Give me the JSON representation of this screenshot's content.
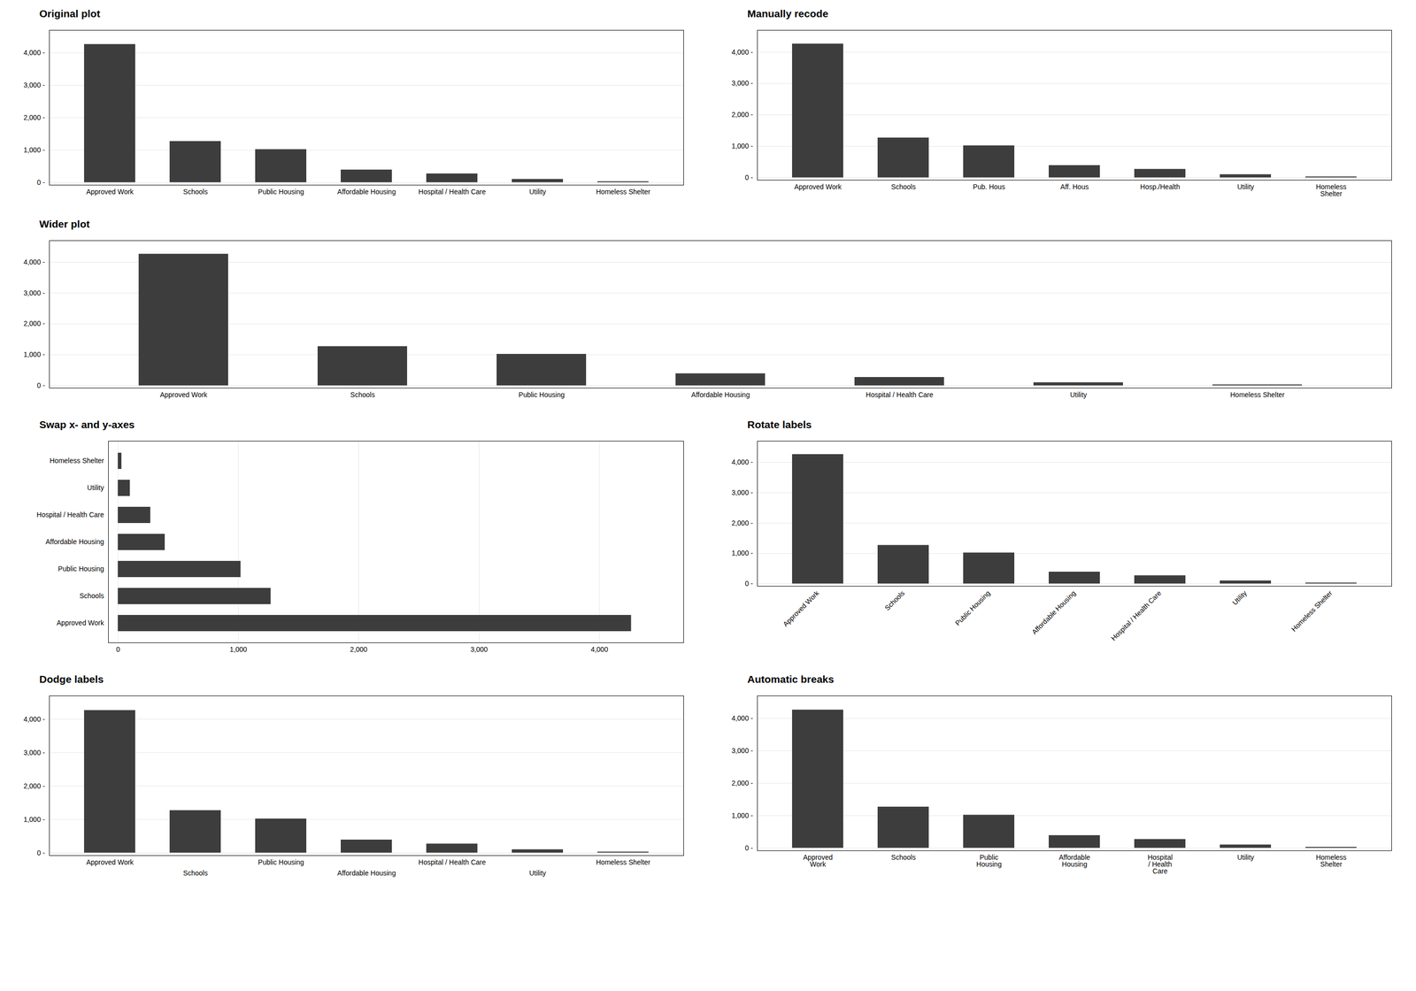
{
  "chart_data": [
    {
      "type": "bar",
      "title": "Original plot",
      "categories": [
        "Approved Work",
        "Schools",
        "Public Housing",
        "Affordable Housing",
        "Hospital / Health Care",
        "Utility",
        "Homeless Shelter"
      ],
      "values": [
        4265,
        1270,
        1020,
        390,
        270,
        100,
        30
      ],
      "color": "#3d3d3d",
      "ylim": [
        -80,
        4700
      ],
      "yticks": [
        {
          "value": 0,
          "label": "0 -"
        },
        {
          "value": 1000,
          "label": "1,000 -"
        },
        {
          "value": 2000,
          "label": "2,000 -"
        },
        {
          "value": 3000,
          "label": "3,000 -"
        },
        {
          "value": 4000,
          "label": "4,000 -"
        }
      ],
      "grid": true
    },
    {
      "type": "bar",
      "title": "Manually recode",
      "categories": [
        "Approved Work",
        "Schools",
        "Pub. Hous",
        "Aff. Hous",
        "Hosp./Health",
        "Utility",
        "Homeless\nShelter"
      ],
      "values": [
        4265,
        1270,
        1020,
        390,
        270,
        100,
        30
      ],
      "color": "#3d3d3d",
      "ylim": [
        -80,
        4700
      ],
      "yticks": [
        {
          "value": 0,
          "label": "0 -"
        },
        {
          "value": 1000,
          "label": "1,000 -"
        },
        {
          "value": 2000,
          "label": "2,000 -"
        },
        {
          "value": 3000,
          "label": "3,000 -"
        },
        {
          "value": 4000,
          "label": "4,000 -"
        }
      ],
      "grid": true
    },
    {
      "type": "bar",
      "title": "Wider plot",
      "categories": [
        "Approved Work",
        "Schools",
        "Public Housing",
        "Affordable Housing",
        "Hospital / Health Care",
        "Utility",
        "Homeless Shelter"
      ],
      "values": [
        4265,
        1270,
        1020,
        390,
        270,
        100,
        30
      ],
      "color": "#3d3d3d",
      "ylim": [
        -80,
        4700
      ],
      "yticks": [
        {
          "value": 0,
          "label": "0 -"
        },
        {
          "value": 1000,
          "label": "1,000 -"
        },
        {
          "value": 2000,
          "label": "2,000 -"
        },
        {
          "value": 3000,
          "label": "3,000 -"
        },
        {
          "value": 4000,
          "label": "4,000 -"
        }
      ],
      "grid": true
    },
    {
      "type": "bar",
      "title": "Swap x- and y-axes",
      "orientation": "horizontal",
      "categories": [
        "Approved Work",
        "Schools",
        "Public Housing",
        "Affordable Housing",
        "Hospital / Health Care",
        "Utility",
        "Homeless Shelter"
      ],
      "values": [
        4265,
        1270,
        1020,
        390,
        270,
        100,
        30
      ],
      "color": "#3d3d3d",
      "xlim": [
        -80,
        4700
      ],
      "xticks": [
        0,
        {
          "value": 1000,
          "label": "1,000"
        },
        {
          "value": 2000,
          "label": "2,000"
        },
        {
          "value": 3000,
          "label": "3,000"
        },
        {
          "value": 4000,
          "label": "4,000"
        }
      ],
      "grid": true
    },
    {
      "type": "bar",
      "title": "Rotate labels",
      "categories": [
        "Approved Work",
        "Schools",
        "Public Housing",
        "Affordable Housing",
        "Hospital / Health Care",
        "Utility",
        "Homeless Shelter"
      ],
      "values": [
        4265,
        1270,
        1020,
        390,
        270,
        100,
        30
      ],
      "color": "#3d3d3d",
      "ylim": [
        -80,
        4700
      ],
      "yticks": [
        {
          "value": 0,
          "label": "0 -"
        },
        {
          "value": 1000,
          "label": "1,000 -"
        },
        {
          "value": 2000,
          "label": "2,000 -"
        },
        {
          "value": 3000,
          "label": "3,000 -"
        },
        {
          "value": 4000,
          "label": "4,000 -"
        }
      ],
      "grid": true
    },
    {
      "type": "bar",
      "title": "Dodge labels",
      "categories": [
        "Approved Work",
        "Schools",
        "Public Housing",
        "Affordable Housing",
        "Hospital / Health Care",
        "Utility",
        "Homeless Shelter"
      ],
      "values": [
        4265,
        1270,
        1020,
        390,
        270,
        100,
        30
      ],
      "color": "#3d3d3d",
      "ylim": [
        -80,
        4700
      ],
      "yticks": [
        {
          "value": 0,
          "label": "0 -"
        },
        {
          "value": 1000,
          "label": "1,000 -"
        },
        {
          "value": 2000,
          "label": "2,000 -"
        },
        {
          "value": 3000,
          "label": "3,000 -"
        },
        {
          "value": 4000,
          "label": "4,000 -"
        }
      ],
      "grid": true
    },
    {
      "type": "bar",
      "title": "Automatic breaks",
      "categories": [
        "Approved\nWork",
        "Schools",
        "Public\nHousing",
        "Affordable\nHousing",
        "Hospital\n/ Health\nCare",
        "Utility",
        "Homeless\nShelter"
      ],
      "values": [
        4265,
        1270,
        1020,
        390,
        270,
        100,
        30
      ],
      "color": "#3d3d3d",
      "ylim": [
        -80,
        4700
      ],
      "yticks": [
        {
          "value": 0,
          "label": "0 -"
        },
        {
          "value": 1000,
          "label": "1,000 -"
        },
        {
          "value": 2000,
          "label": "2,000 -"
        },
        {
          "value": 3000,
          "label": "3,000 -"
        },
        {
          "value": 4000,
          "label": "4,000 -"
        }
      ],
      "grid": true
    }
  ]
}
